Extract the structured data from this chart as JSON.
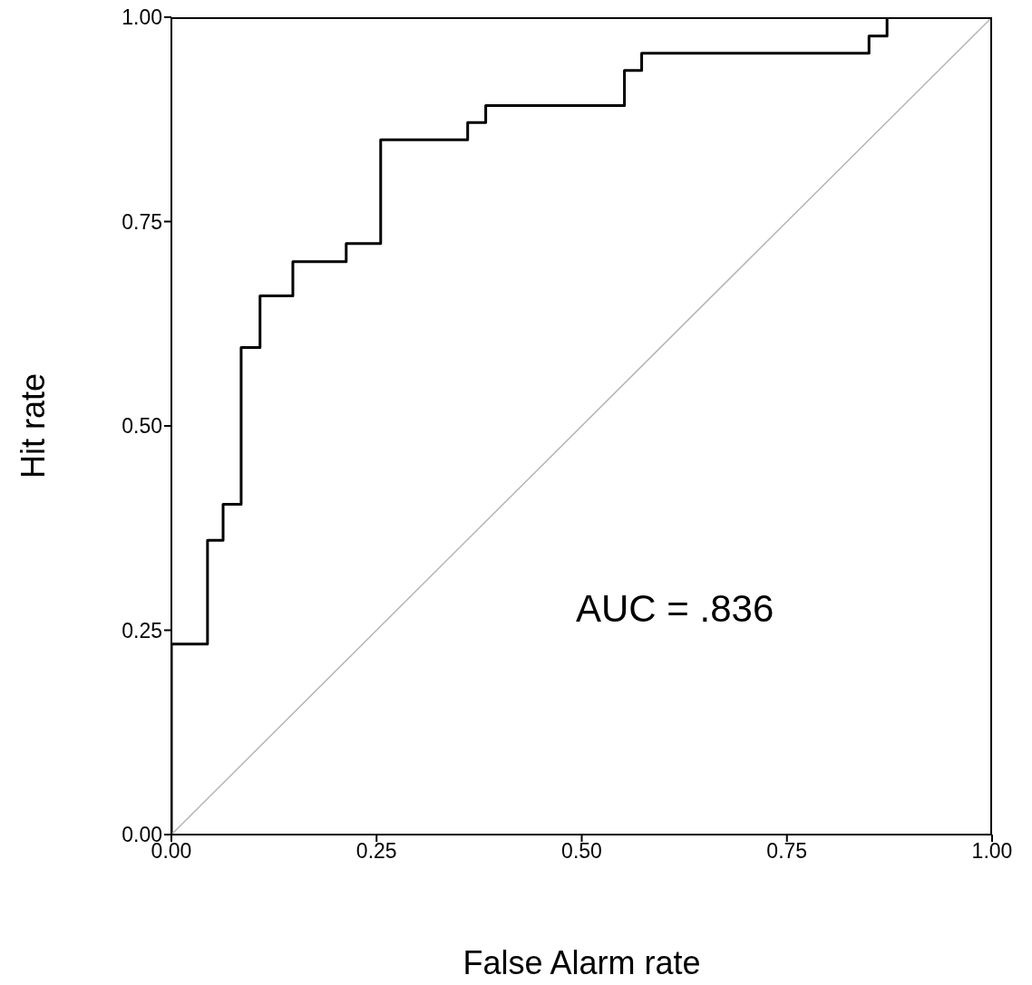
{
  "chart_data": {
    "type": "step",
    "xlabel": "False Alarm rate",
    "ylabel": "Hit rate",
    "x": [
      0,
      0,
      0.044,
      0.063,
      0.085,
      0.108,
      0.148,
      0.213,
      0.255,
      0.361,
      0.383,
      0.552,
      0.573,
      0.85,
      0.872,
      1.0
    ],
    "series": [
      {
        "color": "#000000",
        "values": [
          0,
          0.233,
          0.36,
          0.404,
          0.596,
          0.659,
          0.701,
          0.723,
          0.85,
          0.871,
          0.892,
          0.935,
          0.956,
          0.977,
          1.0,
          1.0
        ]
      },
      {
        "type": "line",
        "color": "#b4b4b4",
        "x": [
          0,
          1
        ],
        "values": [
          0,
          1
        ]
      }
    ],
    "xlim": [
      0,
      1
    ],
    "ylim": [
      0,
      1
    ],
    "xticks": [
      {
        "value": 0,
        "label": "0.00"
      },
      {
        "value": 0.25,
        "label": "0.25"
      },
      {
        "value": 0.5,
        "label": "0.50"
      },
      {
        "value": 0.75,
        "label": "0.75"
      },
      {
        "value": 1,
        "label": "1.00"
      }
    ],
    "yticks": [
      {
        "value": 0,
        "label": "0.00"
      },
      {
        "value": 0.25,
        "label": "0.25"
      },
      {
        "value": 0.5,
        "label": "0.50"
      },
      {
        "value": 0.75,
        "label": "0.75"
      },
      {
        "value": 1,
        "label": "1.00"
      }
    ],
    "annotations": [
      "AUC = .836"
    ]
  }
}
